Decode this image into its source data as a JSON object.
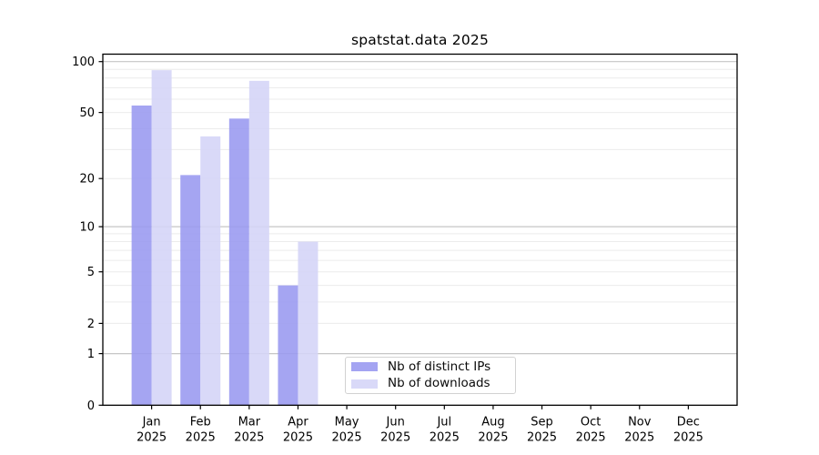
{
  "chart_data": {
    "type": "bar",
    "title": "spatstat.data 2025",
    "categories": [
      "Jan",
      "Feb",
      "Mar",
      "Apr",
      "May",
      "Jun",
      "Jul",
      "Aug",
      "Sep",
      "Oct",
      "Nov",
      "Dec"
    ],
    "year_label": "2025",
    "series": [
      {
        "name": "Nb of distinct IPs",
        "color": "#a4a4f2",
        "values": [
          55,
          21,
          46,
          4,
          null,
          null,
          null,
          null,
          null,
          null,
          null,
          null
        ]
      },
      {
        "name": "Nb of downloads",
        "color": "#d9d9f8",
        "values": [
          89,
          36,
          77,
          8,
          null,
          null,
          null,
          null,
          null,
          null,
          null,
          null
        ]
      }
    ],
    "yscale": "log1p",
    "ylim": [
      0,
      111
    ],
    "y_tick_labels": [
      "0",
      "1",
      "2",
      "5",
      "10",
      "20",
      "50",
      "100"
    ],
    "y_tick_values": [
      0,
      1,
      2,
      5,
      10,
      20,
      50,
      100
    ],
    "y_major_gridlines": [
      1,
      10,
      100
    ],
    "y_minor_gridlines": [
      2,
      3,
      4,
      5,
      6,
      7,
      8,
      9,
      20,
      30,
      40,
      50,
      60,
      70,
      80,
      90
    ],
    "grid": true,
    "legend_position": "lower center"
  },
  "colors": {
    "background": "#ffffff",
    "axis": "#000000",
    "tick_text": "#000000",
    "major_grid": "#c6c6c6",
    "minor_grid": "#ececec",
    "legend_border": "#d2d2d2",
    "bar_distinct_ips": "#a4a4f2",
    "bar_downloads": "#d9d9f8"
  }
}
